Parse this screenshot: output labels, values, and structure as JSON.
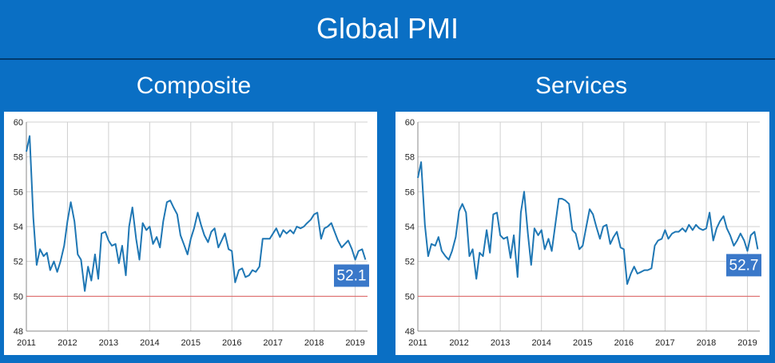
{
  "title": "Global PMI",
  "colors": {
    "background": "#0a6fc4",
    "line": "#1f77b4",
    "reference_line": "#e06060",
    "badge": "#3a78c9"
  },
  "chart_data": [
    {
      "type": "line",
      "title": "Composite",
      "x_ticks": [
        "2011",
        "2012",
        "2013",
        "2014",
        "2015",
        "2016",
        "2017",
        "2018",
        "2019"
      ],
      "xlim": [
        2011.0,
        2019.3
      ],
      "ylim": [
        48,
        60
      ],
      "y_ticks": [
        48,
        50,
        52,
        54,
        56,
        58,
        60
      ],
      "reference_line": 50,
      "grid": true,
      "latest_label": "52.1",
      "series": [
        {
          "x": [
            2011.0,
            2011.08,
            2011.17,
            2011.25,
            2011.33,
            2011.42,
            2011.5,
            2011.58,
            2011.67,
            2011.75,
            2011.83,
            2011.92,
            2012.0,
            2012.08,
            2012.17,
            2012.25,
            2012.33,
            2012.42,
            2012.5,
            2012.58,
            2012.67,
            2012.75,
            2012.83,
            2012.92,
            2013.0,
            2013.08,
            2013.17,
            2013.25,
            2013.33,
            2013.42,
            2013.5,
            2013.58,
            2013.67,
            2013.75,
            2013.83,
            2013.92,
            2014.0,
            2014.08,
            2014.17,
            2014.25,
            2014.33,
            2014.42,
            2014.5,
            2014.58,
            2014.67,
            2014.75,
            2014.83,
            2014.92,
            2015.0,
            2015.08,
            2015.17,
            2015.25,
            2015.33,
            2015.42,
            2015.5,
            2015.58,
            2015.67,
            2015.75,
            2015.83,
            2015.92,
            2016.0,
            2016.08,
            2016.17,
            2016.25,
            2016.33,
            2016.42,
            2016.5,
            2016.58,
            2016.67,
            2016.75,
            2016.83,
            2016.92,
            2017.0,
            2017.08,
            2017.17,
            2017.25,
            2017.33,
            2017.42,
            2017.5,
            2017.58,
            2017.67,
            2017.75,
            2017.83,
            2017.92,
            2018.0,
            2018.08,
            2018.17,
            2018.25,
            2018.33,
            2018.42,
            2018.5,
            2018.58,
            2018.67,
            2018.75,
            2018.83,
            2018.92,
            2019.0,
            2019.08,
            2019.17,
            2019.25
          ],
          "y": [
            58.3,
            59.2,
            54.5,
            51.8,
            52.7,
            52.3,
            52.5,
            51.5,
            52.0,
            51.4,
            52.0,
            52.9,
            54.3,
            55.4,
            54.3,
            52.4,
            52.1,
            50.3,
            51.7,
            50.9,
            52.4,
            51.0,
            53.6,
            53.7,
            53.2,
            52.9,
            53.0,
            51.9,
            52.9,
            51.2,
            54.0,
            55.1,
            53.3,
            52.1,
            54.2,
            53.8,
            54.0,
            53.0,
            53.4,
            52.8,
            54.3,
            55.4,
            55.5,
            55.1,
            54.7,
            53.5,
            53.0,
            52.4,
            53.3,
            53.9,
            54.8,
            54.1,
            53.5,
            53.1,
            53.7,
            53.9,
            52.8,
            53.2,
            53.6,
            52.7,
            52.6,
            50.8,
            51.5,
            51.6,
            51.1,
            51.2,
            51.5,
            51.4,
            51.7,
            53.3,
            53.3,
            53.3,
            53.6,
            53.9,
            53.4,
            53.8,
            53.6,
            53.8,
            53.6,
            54.0,
            53.9,
            54.0,
            54.2,
            54.4,
            54.7,
            54.8,
            53.3,
            53.9,
            54.0,
            54.2,
            53.7,
            53.2,
            52.8,
            53.0,
            53.2,
            52.7,
            52.1,
            52.6,
            52.7,
            52.1
          ]
        }
      ]
    },
    {
      "type": "line",
      "title": "Services",
      "x_ticks": [
        "2011",
        "2012",
        "2013",
        "2014",
        "2015",
        "2016",
        "2017",
        "2018",
        "2019"
      ],
      "xlim": [
        2011.0,
        2019.3
      ],
      "ylim": [
        48,
        60
      ],
      "y_ticks": [
        48,
        50,
        52,
        54,
        56,
        58,
        60
      ],
      "reference_line": 50,
      "grid": true,
      "latest_label": "52.7",
      "series": [
        {
          "x": [
            2011.0,
            2011.08,
            2011.17,
            2011.25,
            2011.33,
            2011.42,
            2011.5,
            2011.58,
            2011.67,
            2011.75,
            2011.83,
            2011.92,
            2012.0,
            2012.08,
            2012.17,
            2012.25,
            2012.33,
            2012.42,
            2012.5,
            2012.58,
            2012.67,
            2012.75,
            2012.83,
            2012.92,
            2013.0,
            2013.08,
            2013.17,
            2013.25,
            2013.33,
            2013.42,
            2013.5,
            2013.58,
            2013.67,
            2013.75,
            2013.83,
            2013.92,
            2014.0,
            2014.08,
            2014.17,
            2014.25,
            2014.33,
            2014.42,
            2014.5,
            2014.58,
            2014.67,
            2014.75,
            2014.83,
            2014.92,
            2015.0,
            2015.08,
            2015.17,
            2015.25,
            2015.33,
            2015.42,
            2015.5,
            2015.58,
            2015.67,
            2015.75,
            2015.83,
            2015.92,
            2016.0,
            2016.08,
            2016.17,
            2016.25,
            2016.33,
            2016.42,
            2016.5,
            2016.58,
            2016.67,
            2016.75,
            2016.83,
            2016.92,
            2017.0,
            2017.08,
            2017.17,
            2017.25,
            2017.33,
            2017.42,
            2017.5,
            2017.58,
            2017.67,
            2017.75,
            2017.83,
            2017.92,
            2018.0,
            2018.08,
            2018.17,
            2018.25,
            2018.33,
            2018.42,
            2018.5,
            2018.58,
            2018.67,
            2018.75,
            2018.83,
            2018.92,
            2019.0,
            2019.08,
            2019.17,
            2019.25
          ],
          "y": [
            56.8,
            57.7,
            54.1,
            52.3,
            53.0,
            52.9,
            53.4,
            52.6,
            52.3,
            52.1,
            52.6,
            53.4,
            54.9,
            55.3,
            54.8,
            52.3,
            52.7,
            51.0,
            52.5,
            52.3,
            53.8,
            52.5,
            54.7,
            54.8,
            53.5,
            53.3,
            53.4,
            52.2,
            53.5,
            51.1,
            54.8,
            56.0,
            53.6,
            51.8,
            53.9,
            53.5,
            53.8,
            52.7,
            53.3,
            52.6,
            54.0,
            55.6,
            55.6,
            55.5,
            55.3,
            53.8,
            53.6,
            52.7,
            52.9,
            53.9,
            55.0,
            54.7,
            54.0,
            53.3,
            54.0,
            54.1,
            53.0,
            53.4,
            53.7,
            52.8,
            52.7,
            50.7,
            51.3,
            51.7,
            51.3,
            51.4,
            51.5,
            51.5,
            51.6,
            52.9,
            53.2,
            53.3,
            53.8,
            53.3,
            53.6,
            53.7,
            53.7,
            53.9,
            53.7,
            54.1,
            53.8,
            54.1,
            53.9,
            53.8,
            53.9,
            54.8,
            53.2,
            53.9,
            54.3,
            54.6,
            53.9,
            53.5,
            52.9,
            53.2,
            53.6,
            53.2,
            52.6,
            53.5,
            53.7,
            52.7
          ]
        }
      ]
    }
  ]
}
